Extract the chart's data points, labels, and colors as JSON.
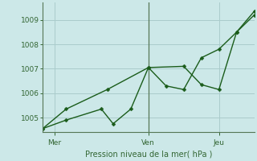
{
  "xlabel": "Pression niveau de la mer( hPa )",
  "bg_color": "#cce8e8",
  "grid_color": "#aacccc",
  "line_color": "#1a5c1a",
  "ylim": [
    1004.4,
    1009.7
  ],
  "yticks": [
    1005,
    1006,
    1007,
    1008,
    1009
  ],
  "xlim": [
    0,
    72
  ],
  "xtick_positions": [
    4,
    36,
    60
  ],
  "xtick_labels": [
    "Mer",
    "Ven",
    "Jeu"
  ],
  "vline_x": 36,
  "series1_x": [
    0,
    8,
    20,
    24,
    30,
    36,
    42,
    48,
    54,
    60,
    66,
    72
  ],
  "series1_y": [
    1004.55,
    1004.9,
    1005.35,
    1004.75,
    1005.35,
    1007.05,
    1006.3,
    1006.15,
    1007.45,
    1007.8,
    1008.5,
    1009.2
  ],
  "series2_x": [
    0,
    8,
    22,
    36,
    48,
    54,
    60,
    66,
    72
  ],
  "series2_y": [
    1004.55,
    1005.35,
    1006.15,
    1007.05,
    1007.1,
    1006.35,
    1006.15,
    1008.5,
    1009.35
  ],
  "marker_size": 2.5,
  "linewidth": 1.0
}
